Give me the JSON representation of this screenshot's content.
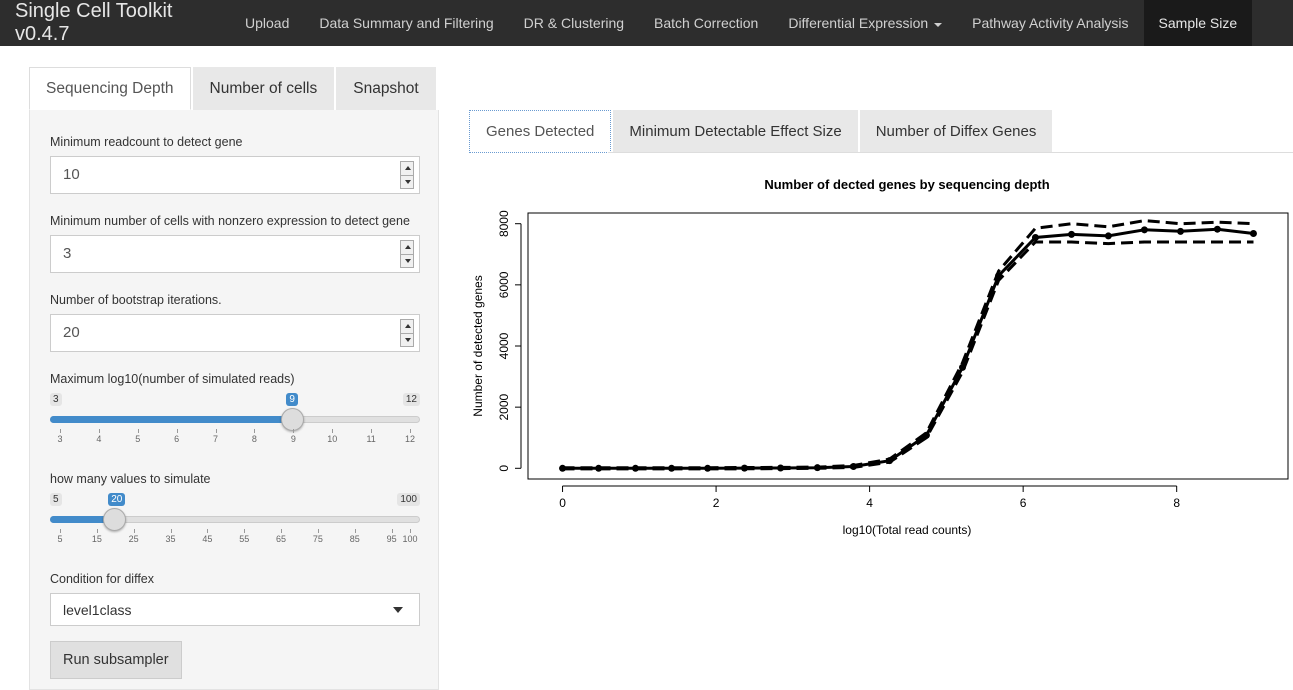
{
  "navbar": {
    "brand": "Single Cell Toolkit v0.4.7",
    "items": [
      {
        "label": "Upload"
      },
      {
        "label": "Data Summary and Filtering"
      },
      {
        "label": "DR & Clustering"
      },
      {
        "label": "Batch Correction"
      },
      {
        "label": "Differential Expression"
      },
      {
        "label": "Pathway Activity Analysis"
      },
      {
        "label": "Sample Size"
      }
    ]
  },
  "left_tabs": [
    {
      "label": "Sequencing Depth"
    },
    {
      "label": "Number of cells"
    },
    {
      "label": "Snapshot"
    }
  ],
  "sidebar": {
    "min_readcount": {
      "label": "Minimum readcount to detect gene",
      "value": "10"
    },
    "min_cells": {
      "label": "Minimum number of cells with nonzero expression to detect gene",
      "value": "3"
    },
    "bootstrap": {
      "label": "Number of bootstrap iterations.",
      "value": "20"
    },
    "max_log10": {
      "label": "Maximum log10(number of simulated reads)",
      "min": 3,
      "max": 12,
      "value": 9,
      "min_label": "3",
      "max_label": "12",
      "value_label": "9",
      "ticks": [
        "3",
        "4",
        "5",
        "6",
        "7",
        "8",
        "9",
        "10",
        "11",
        "12"
      ]
    },
    "how_many": {
      "label": "how many values to simulate",
      "min": 5,
      "max": 100,
      "value": 20,
      "min_label": "5",
      "max_label": "100",
      "value_label": "20",
      "ticks": [
        "5",
        "15",
        "25",
        "35",
        "45",
        "55",
        "65",
        "75",
        "85",
        "95",
        "100"
      ]
    },
    "condition": {
      "label": "Condition for diffex",
      "value": "level1class"
    },
    "run_button": "Run subsampler"
  },
  "right_tabs": [
    {
      "label": "Genes Detected"
    },
    {
      "label": "Minimum Detectable Effect Size"
    },
    {
      "label": "Number of Diffex Genes"
    }
  ],
  "chart_data": {
    "type": "line",
    "title": "Number of dected genes by sequencing depth",
    "xlabel": "log10(Total read counts)",
    "ylabel": "Number of detected genes",
    "xlim": [
      -0.45,
      9.45
    ],
    "ylim": [
      -350,
      8350
    ],
    "x_ticks": [
      0,
      2,
      4,
      6,
      8
    ],
    "y_ticks": [
      0,
      2000,
      4000,
      6000,
      8000
    ],
    "grid": false,
    "series": [
      {
        "style": "points",
        "x": [
          0,
          0.47,
          0.95,
          1.42,
          1.89,
          2.37,
          2.84,
          3.32,
          3.79,
          4.26,
          4.74,
          5.21,
          5.68,
          6.16,
          6.63,
          7.11,
          7.58,
          8.05,
          8.53,
          9.0
        ],
        "values": [
          0,
          0,
          0,
          0,
          0,
          5,
          10,
          20,
          60,
          250,
          1080,
          3300,
          6300,
          7550,
          7650,
          7600,
          7800,
          7750,
          7820,
          7680
        ]
      },
      {
        "style": "dashed",
        "x": [
          0,
          0.47,
          0.95,
          1.42,
          1.89,
          2.37,
          2.84,
          3.32,
          3.79,
          4.26,
          4.74,
          5.21,
          5.68,
          6.16,
          6.63,
          7.11,
          7.58,
          8.05,
          8.53,
          9.0
        ],
        "values": [
          -20,
          -20,
          -20,
          -20,
          -20,
          -15,
          -10,
          0,
          30,
          200,
          1000,
          3150,
          6150,
          7400,
          7400,
          7350,
          7400,
          7400,
          7400,
          7400
        ]
      },
      {
        "style": "dashed",
        "x": [
          0,
          0.47,
          0.95,
          1.42,
          1.89,
          2.37,
          2.84,
          3.32,
          3.79,
          4.26,
          4.74,
          5.21,
          5.68,
          6.16,
          6.63,
          7.11,
          7.58,
          8.05,
          8.53,
          9.0
        ],
        "values": [
          20,
          20,
          20,
          20,
          20,
          25,
          30,
          40,
          90,
          300,
          1160,
          3450,
          6450,
          7850,
          8000,
          7900,
          8100,
          8000,
          8050,
          8000
        ]
      }
    ]
  }
}
